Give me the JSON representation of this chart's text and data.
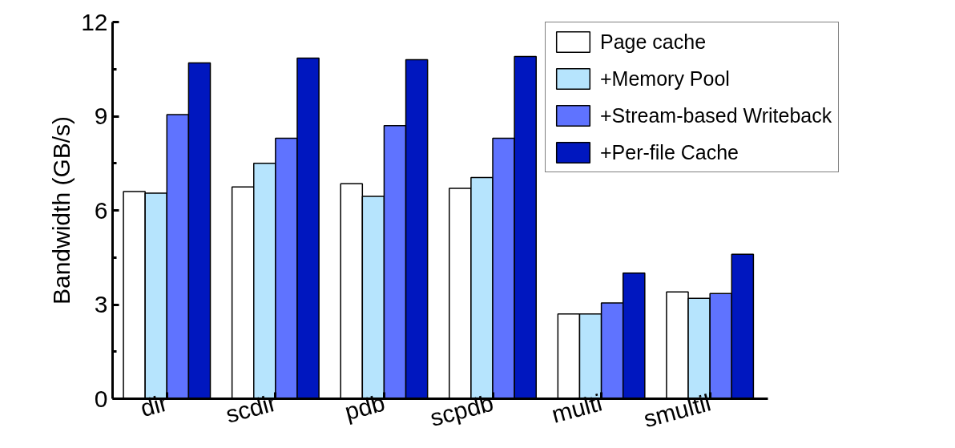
{
  "chart_data": {
    "type": "bar",
    "ylabel": "Bandwidth (GB/s)",
    "categories": [
      "dir",
      "scdir",
      "pdb",
      "scpdb",
      "multi",
      "smultil"
    ],
    "series": [
      {
        "name": "Page cache",
        "color": "#ffffff",
        "values": [
          6.6,
          6.75,
          6.85,
          6.7,
          2.7,
          3.4
        ]
      },
      {
        "name": "+Memory Pool",
        "color": "#b6e4fd",
        "values": [
          6.55,
          7.5,
          6.45,
          7.05,
          2.7,
          3.2
        ]
      },
      {
        "name": "+Stream-based Writeback",
        "color": "#5f73ff",
        "values": [
          9.05,
          8.3,
          8.7,
          8.3,
          3.05,
          3.35
        ]
      },
      {
        "name": "+Per-file Cache",
        "color": "#0017bf",
        "values": [
          10.7,
          10.85,
          10.8,
          10.9,
          4.0,
          4.6
        ]
      }
    ],
    "ylim": [
      0,
      12
    ],
    "yticks": [
      0,
      3,
      6,
      9,
      12
    ],
    "grid": false,
    "legend": "top right"
  }
}
